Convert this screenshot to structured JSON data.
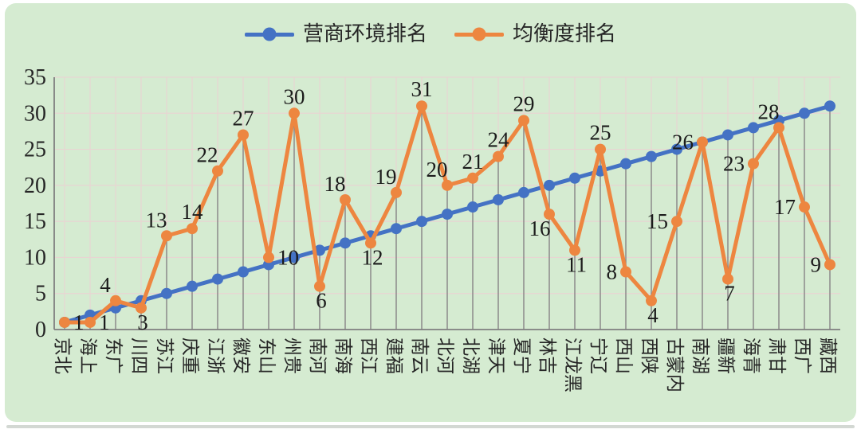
{
  "chart_data": {
    "type": "line",
    "title": "",
    "legend_position": "top",
    "grid": true,
    "categories": [
      "北京",
      "上海",
      "广东",
      "四川",
      "江苏",
      "重庆",
      "浙江",
      "安徽",
      "山东",
      "贵州",
      "河南",
      "海南",
      "江西",
      "福建",
      "云南",
      "河北",
      "湖北",
      "天津",
      "宁夏",
      "吉林",
      "黑龙江",
      "辽宁",
      "山西",
      "陕西",
      "内蒙古",
      "湖南",
      "新疆",
      "青海",
      "甘肃",
      "广西",
      "西藏"
    ],
    "series": [
      {
        "name": "营商环境排名",
        "color": "#4472C4",
        "values": [
          1,
          2,
          3,
          4,
          5,
          6,
          7,
          8,
          9,
          10,
          11,
          12,
          13,
          14,
          15,
          16,
          17,
          18,
          19,
          20,
          21,
          22,
          23,
          24,
          25,
          26,
          27,
          28,
          29,
          30,
          31
        ]
      },
      {
        "name": "均衡度排名",
        "color": "#ED8640",
        "values": [
          1,
          1,
          4,
          3,
          13,
          14,
          22,
          27,
          10,
          30,
          6,
          18,
          12,
          19,
          31,
          20,
          21,
          24,
          29,
          16,
          11,
          25,
          8,
          4,
          15,
          26,
          7,
          23,
          28,
          17,
          9
        ],
        "label_positions": [
          "right",
          "right",
          "above-left",
          "below",
          "above-left",
          "above",
          "above-left",
          "above",
          "right",
          "above",
          "below",
          "above-left",
          "below",
          "above-left",
          "above",
          "above-left",
          "above",
          "above",
          "above",
          "below-left",
          "below",
          "above",
          "left",
          "below",
          "left",
          "left",
          "below",
          "left",
          "above-left",
          "left",
          "left"
        ]
      }
    ],
    "data_labels_series": "均衡度排名",
    "y_axis": {
      "min": 0,
      "max": 35,
      "tick_step": 5,
      "tick_labels": [
        "0",
        "5",
        "10",
        "15",
        "20",
        "25",
        "30",
        "35"
      ]
    },
    "x_axis": {
      "label_rotation": "vertical"
    },
    "style": {
      "background": "#d5ebd1",
      "grid_color": "#e8d5d2",
      "axis_color": "#7f7f7f",
      "droplines_color": "#858585",
      "text_color": "#262626",
      "data_label_color": "#1b1b1b"
    }
  }
}
